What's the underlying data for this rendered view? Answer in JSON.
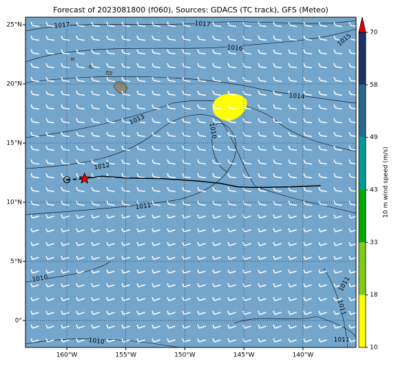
{
  "chart_data": {
    "type": "map",
    "title": "Forecast of 2023081800 (f060), Sources: GDACS (TC track), GFS (Meteo)",
    "xlim": [
      -163.5,
      -135.5
    ],
    "ylim": [
      -2.27,
      25.64
    ],
    "xticks": [
      {
        "value": -160,
        "label": "160°W"
      },
      {
        "value": -155,
        "label": "155°W"
      },
      {
        "value": -150,
        "label": "150°W"
      },
      {
        "value": -145,
        "label": "145°W"
      },
      {
        "value": -140,
        "label": "140°W"
      }
    ],
    "yticks": [
      {
        "value": 0,
        "label": "0°"
      },
      {
        "value": 5,
        "label": "5°N"
      },
      {
        "value": 10,
        "label": "10°N"
      },
      {
        "value": 15,
        "label": "15°N"
      },
      {
        "value": 20,
        "label": "20°N"
      },
      {
        "value": 25,
        "label": "25°N"
      }
    ],
    "grid": true,
    "isobar_labels": [
      "1017",
      "1017",
      "1016",
      "1015",
      "1014",
      "1013",
      "1010",
      "1012",
      "1011",
      "1010",
      "1011",
      "1011",
      "1010",
      "1011"
    ],
    "track": {
      "x": [
        -160,
        -158.5,
        -157,
        -155,
        -152,
        -149,
        -147,
        -145.5,
        -144,
        -141,
        -138.5
      ],
      "y": [
        11.9,
        12.0,
        12.2,
        12.05,
        12.0,
        11.8,
        11.6,
        11.3,
        11.25,
        11.3,
        11.4
      ]
    },
    "colorbar": {
      "label": "10 m wind speed (m/s)",
      "ticks": [
        10,
        18,
        33,
        43,
        49,
        58,
        70
      ],
      "colors": [
        "#ffff00",
        "#80cc1a",
        "#00aa00",
        "#009999",
        "#236b8e",
        "#1c3268"
      ],
      "extend_color": "#ee0000"
    }
  }
}
